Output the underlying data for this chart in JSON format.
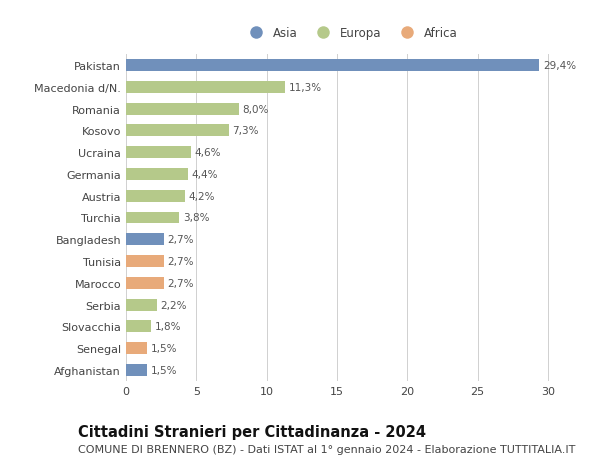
{
  "title": "Cittadini Stranieri per Cittadinanza - 2024",
  "subtitle": "COMUNE DI BRENNERO (BZ) - Dati ISTAT al 1° gennaio 2024 - Elaborazione TUTTITALIA.IT",
  "countries": [
    "Pakistan",
    "Macedonia d/N.",
    "Romania",
    "Kosovo",
    "Ucraina",
    "Germania",
    "Austria",
    "Turchia",
    "Bangladesh",
    "Tunisia",
    "Marocco",
    "Serbia",
    "Slovacchia",
    "Senegal",
    "Afghanistan"
  ],
  "values": [
    29.4,
    11.3,
    8.0,
    7.3,
    4.6,
    4.4,
    4.2,
    3.8,
    2.7,
    2.7,
    2.7,
    2.2,
    1.8,
    1.5,
    1.5
  ],
  "labels": [
    "29,4%",
    "11,3%",
    "8,0%",
    "7,3%",
    "4,6%",
    "4,4%",
    "4,2%",
    "3,8%",
    "2,7%",
    "2,7%",
    "2,7%",
    "2,2%",
    "1,8%",
    "1,5%",
    "1,5%"
  ],
  "continents": [
    "Asia",
    "Europa",
    "Europa",
    "Europa",
    "Europa",
    "Europa",
    "Europa",
    "Europa",
    "Asia",
    "Africa",
    "Africa",
    "Europa",
    "Europa",
    "Africa",
    "Asia"
  ],
  "colors": {
    "Asia": "#7090bb",
    "Europa": "#b5c98a",
    "Africa": "#e8aa7a"
  },
  "xlim": [
    0,
    32
  ],
  "xticks": [
    0,
    5,
    10,
    15,
    20,
    25,
    30
  ],
  "background_color": "#ffffff",
  "grid_color": "#d0d0d0",
  "bar_height": 0.55,
  "title_fontsize": 10.5,
  "subtitle_fontsize": 8.0,
  "label_fontsize": 7.5,
  "tick_fontsize": 8.0,
  "legend_fontsize": 8.5,
  "text_color": "#444444",
  "label_color": "#555555"
}
